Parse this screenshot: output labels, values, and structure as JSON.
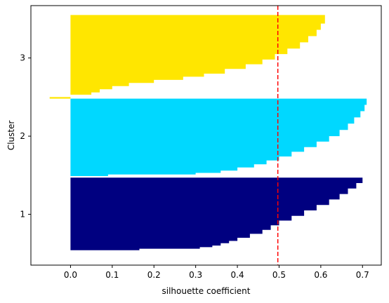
{
  "chart_data": {
    "type": "bar",
    "orientation": "horizontal",
    "title": "",
    "xlabel": "silhouette coefficient",
    "ylabel": "Cluster",
    "xlim": [
      -0.095,
      0.745
    ],
    "ylim": [
      0.35,
      3.67
    ],
    "x_ticks": [
      0.0,
      0.1,
      0.2,
      0.3,
      0.4,
      0.5,
      0.6,
      0.7
    ],
    "x_tick_labels": [
      "0.0",
      "0.1",
      "0.2",
      "0.3",
      "0.4",
      "0.5",
      "0.6",
      "0.7"
    ],
    "y_ticks": [
      1,
      2,
      3
    ],
    "y_tick_labels": [
      "1",
      "2",
      "3"
    ],
    "grid": false,
    "average_silhouette": 0.497,
    "average_line_color": "#ff0000",
    "clusters": [
      {
        "label": "1",
        "color": "#000080",
        "y_range": [
          0.54,
          1.47
        ],
        "profile": [
          [
            0.54,
            0.165
          ],
          [
            0.56,
            0.31
          ],
          [
            0.58,
            0.34
          ],
          [
            0.6,
            0.36
          ],
          [
            0.63,
            0.38
          ],
          [
            0.66,
            0.4
          ],
          [
            0.7,
            0.43
          ],
          [
            0.75,
            0.46
          ],
          [
            0.8,
            0.48
          ],
          [
            0.86,
            0.5
          ],
          [
            0.92,
            0.53
          ],
          [
            0.98,
            0.56
          ],
          [
            1.05,
            0.59
          ],
          [
            1.12,
            0.62
          ],
          [
            1.19,
            0.645
          ],
          [
            1.26,
            0.665
          ],
          [
            1.33,
            0.685
          ],
          [
            1.4,
            0.7
          ],
          [
            1.47,
            0.705
          ]
        ]
      },
      {
        "label": "2",
        "color": "#00d8ff",
        "y_range": [
          1.49,
          2.48
        ],
        "profile": [
          [
            1.49,
            0.09
          ],
          [
            1.51,
            0.3
          ],
          [
            1.53,
            0.36
          ],
          [
            1.56,
            0.4
          ],
          [
            1.6,
            0.44
          ],
          [
            1.64,
            0.47
          ],
          [
            1.69,
            0.5
          ],
          [
            1.74,
            0.53
          ],
          [
            1.8,
            0.56
          ],
          [
            1.86,
            0.59
          ],
          [
            1.93,
            0.62
          ],
          [
            2.0,
            0.645
          ],
          [
            2.08,
            0.665
          ],
          [
            2.16,
            0.68
          ],
          [
            2.24,
            0.695
          ],
          [
            2.32,
            0.705
          ],
          [
            2.4,
            0.71
          ],
          [
            2.48,
            0.715
          ]
        ]
      },
      {
        "label": "3",
        "color": "#ffe600",
        "y_range": [
          2.48,
          3.55
        ],
        "profile": [
          [
            2.48,
            -0.05
          ],
          [
            2.5,
            0.0
          ],
          [
            2.53,
            0.05
          ],
          [
            2.56,
            0.07
          ],
          [
            2.6,
            0.1
          ],
          [
            2.64,
            0.14
          ],
          [
            2.68,
            0.2
          ],
          [
            2.72,
            0.27
          ],
          [
            2.76,
            0.32
          ],
          [
            2.8,
            0.37
          ],
          [
            2.86,
            0.42
          ],
          [
            2.92,
            0.46
          ],
          [
            2.98,
            0.49
          ],
          [
            3.05,
            0.52
          ],
          [
            3.12,
            0.55
          ],
          [
            3.2,
            0.57
          ],
          [
            3.28,
            0.59
          ],
          [
            3.36,
            0.6
          ],
          [
            3.44,
            0.61
          ],
          [
            3.55,
            0.625
          ]
        ]
      }
    ]
  }
}
